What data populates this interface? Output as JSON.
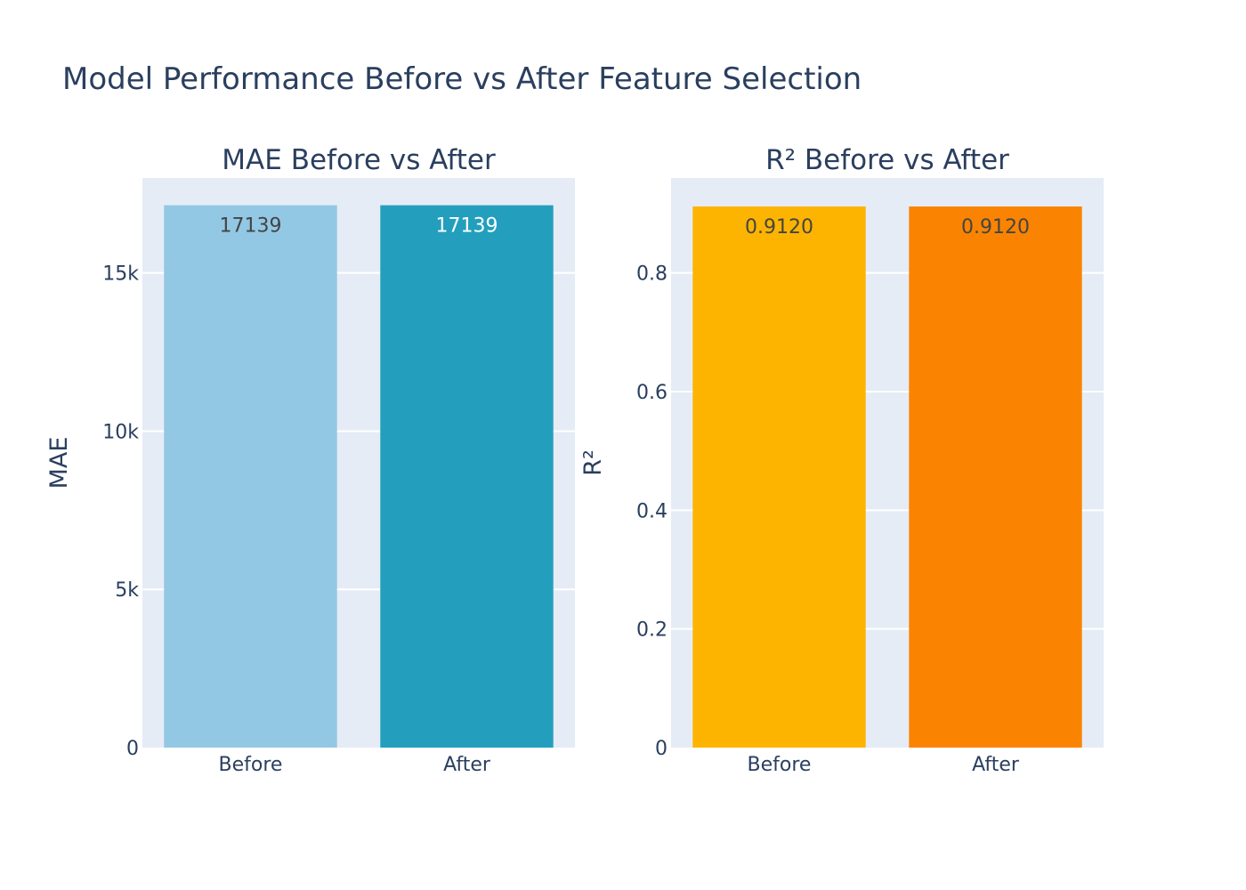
{
  "title": "Model Performance Before vs After Feature Selection",
  "colors": {
    "plot_bg": "#e5ecf6",
    "grid": "#ffffff",
    "text": "#2a3f5f"
  },
  "chart_data": [
    {
      "type": "bar",
      "title": "MAE Before vs After",
      "categories": [
        "Before",
        "After"
      ],
      "values": [
        17139,
        17139
      ],
      "value_labels": [
        "17139",
        "17139"
      ],
      "bar_colors": [
        "#92c8e4",
        "#239fbd"
      ],
      "label_colors": [
        "#444444",
        "#ffffff"
      ],
      "ylabel": "MAE",
      "xlabel": "",
      "ylim": [
        0,
        18000
      ],
      "yticks": [
        0,
        5000,
        10000,
        15000
      ],
      "ytick_labels": [
        "0",
        "5k",
        "10k",
        "15k"
      ],
      "grid": true
    },
    {
      "type": "bar",
      "title": "R² Before vs After",
      "categories": [
        "Before",
        "After"
      ],
      "values": [
        0.912,
        0.912
      ],
      "value_labels": [
        "0.9120",
        "0.9120"
      ],
      "bar_colors": [
        "#fdb401",
        "#fa8402"
      ],
      "label_colors": [
        "#444444",
        "#444444"
      ],
      "ylabel": "R²",
      "xlabel": "",
      "ylim": [
        0,
        0.96
      ],
      "yticks": [
        0,
        0.2,
        0.4,
        0.6,
        0.8
      ],
      "ytick_labels": [
        "0",
        "0.2",
        "0.4",
        "0.6",
        "0.8"
      ],
      "grid": true
    }
  ]
}
